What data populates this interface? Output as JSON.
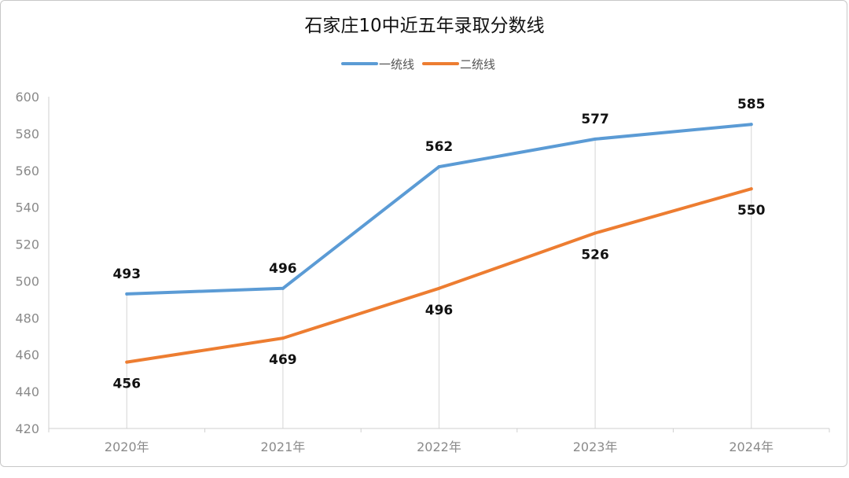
{
  "chart_data": {
    "type": "line",
    "title": "石家庄10中近五年录取分数线",
    "categories": [
      "2020年",
      "2021年",
      "2022年",
      "2023年",
      "2024年"
    ],
    "series": [
      {
        "name": "一统线",
        "color": "#5b9bd5",
        "values": [
          493,
          496,
          562,
          577,
          585
        ],
        "label_position": "above"
      },
      {
        "name": "二统线",
        "color": "#ed7d31",
        "values": [
          456,
          469,
          496,
          526,
          550
        ],
        "label_position": "below"
      }
    ],
    "ylim": [
      420,
      600
    ],
    "yticks": [
      420,
      440,
      460,
      480,
      500,
      520,
      540,
      560,
      580,
      600
    ],
    "grid": "vertical",
    "legend": "top-center"
  }
}
